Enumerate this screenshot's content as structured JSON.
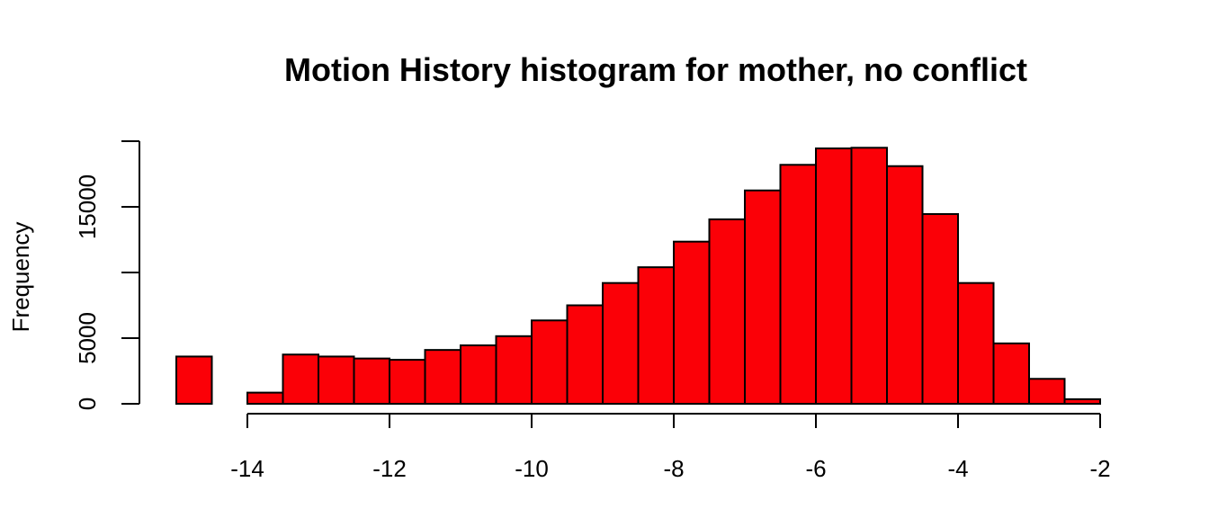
{
  "chart_data": {
    "type": "bar",
    "title": "Motion History histogram for mother, no conflict",
    "xlabel": "",
    "ylabel": "Frequency",
    "bar_color": "#fb0007",
    "edge_color": "#000000",
    "grid": false,
    "bin_width": 0.5,
    "xlim": [
      -15,
      -2
    ],
    "ylim": [
      0,
      20000
    ],
    "x_ticks": [
      -14,
      -12,
      -10,
      -8,
      -6,
      -4,
      -2
    ],
    "x_tick_labels": [
      "-14",
      "-12",
      "-10",
      "-8",
      "-6",
      "-4",
      "-2"
    ],
    "y_ticks": [
      0,
      5000,
      10000,
      15000,
      20000
    ],
    "y_tick_labels": [
      "0",
      "5000",
      "",
      "15000",
      ""
    ],
    "bins": [
      {
        "start": -15.0,
        "end": -14.5,
        "value": 3600
      },
      {
        "start": -14.5,
        "end": -14.0,
        "value": 0
      },
      {
        "start": -14.0,
        "end": -13.5,
        "value": 850
      },
      {
        "start": -13.5,
        "end": -13.0,
        "value": 3750
      },
      {
        "start": -13.0,
        "end": -12.5,
        "value": 3600
      },
      {
        "start": -12.5,
        "end": -12.0,
        "value": 3450
      },
      {
        "start": -12.0,
        "end": -11.5,
        "value": 3350
      },
      {
        "start": -11.5,
        "end": -11.0,
        "value": 4100
      },
      {
        "start": -11.0,
        "end": -10.5,
        "value": 4450
      },
      {
        "start": -10.5,
        "end": -10.0,
        "value": 5150
      },
      {
        "start": -10.0,
        "end": -9.5,
        "value": 6350
      },
      {
        "start": -9.5,
        "end": -9.0,
        "value": 7500
      },
      {
        "start": -9.0,
        "end": -8.5,
        "value": 9200
      },
      {
        "start": -8.5,
        "end": -8.0,
        "value": 10400
      },
      {
        "start": -8.0,
        "end": -7.5,
        "value": 12350
      },
      {
        "start": -7.5,
        "end": -7.0,
        "value": 14050
      },
      {
        "start": -7.0,
        "end": -6.5,
        "value": 16250
      },
      {
        "start": -6.5,
        "end": -6.0,
        "value": 18200
      },
      {
        "start": -6.0,
        "end": -5.5,
        "value": 19450
      },
      {
        "start": -5.5,
        "end": -5.0,
        "value": 19500
      },
      {
        "start": -5.0,
        "end": -4.5,
        "value": 18100
      },
      {
        "start": -4.5,
        "end": -4.0,
        "value": 14450
      },
      {
        "start": -4.0,
        "end": -3.5,
        "value": 9200
      },
      {
        "start": -3.5,
        "end": -3.0,
        "value": 4600
      },
      {
        "start": -3.0,
        "end": -2.5,
        "value": 1900
      },
      {
        "start": -2.5,
        "end": -2.0,
        "value": 350
      }
    ]
  }
}
